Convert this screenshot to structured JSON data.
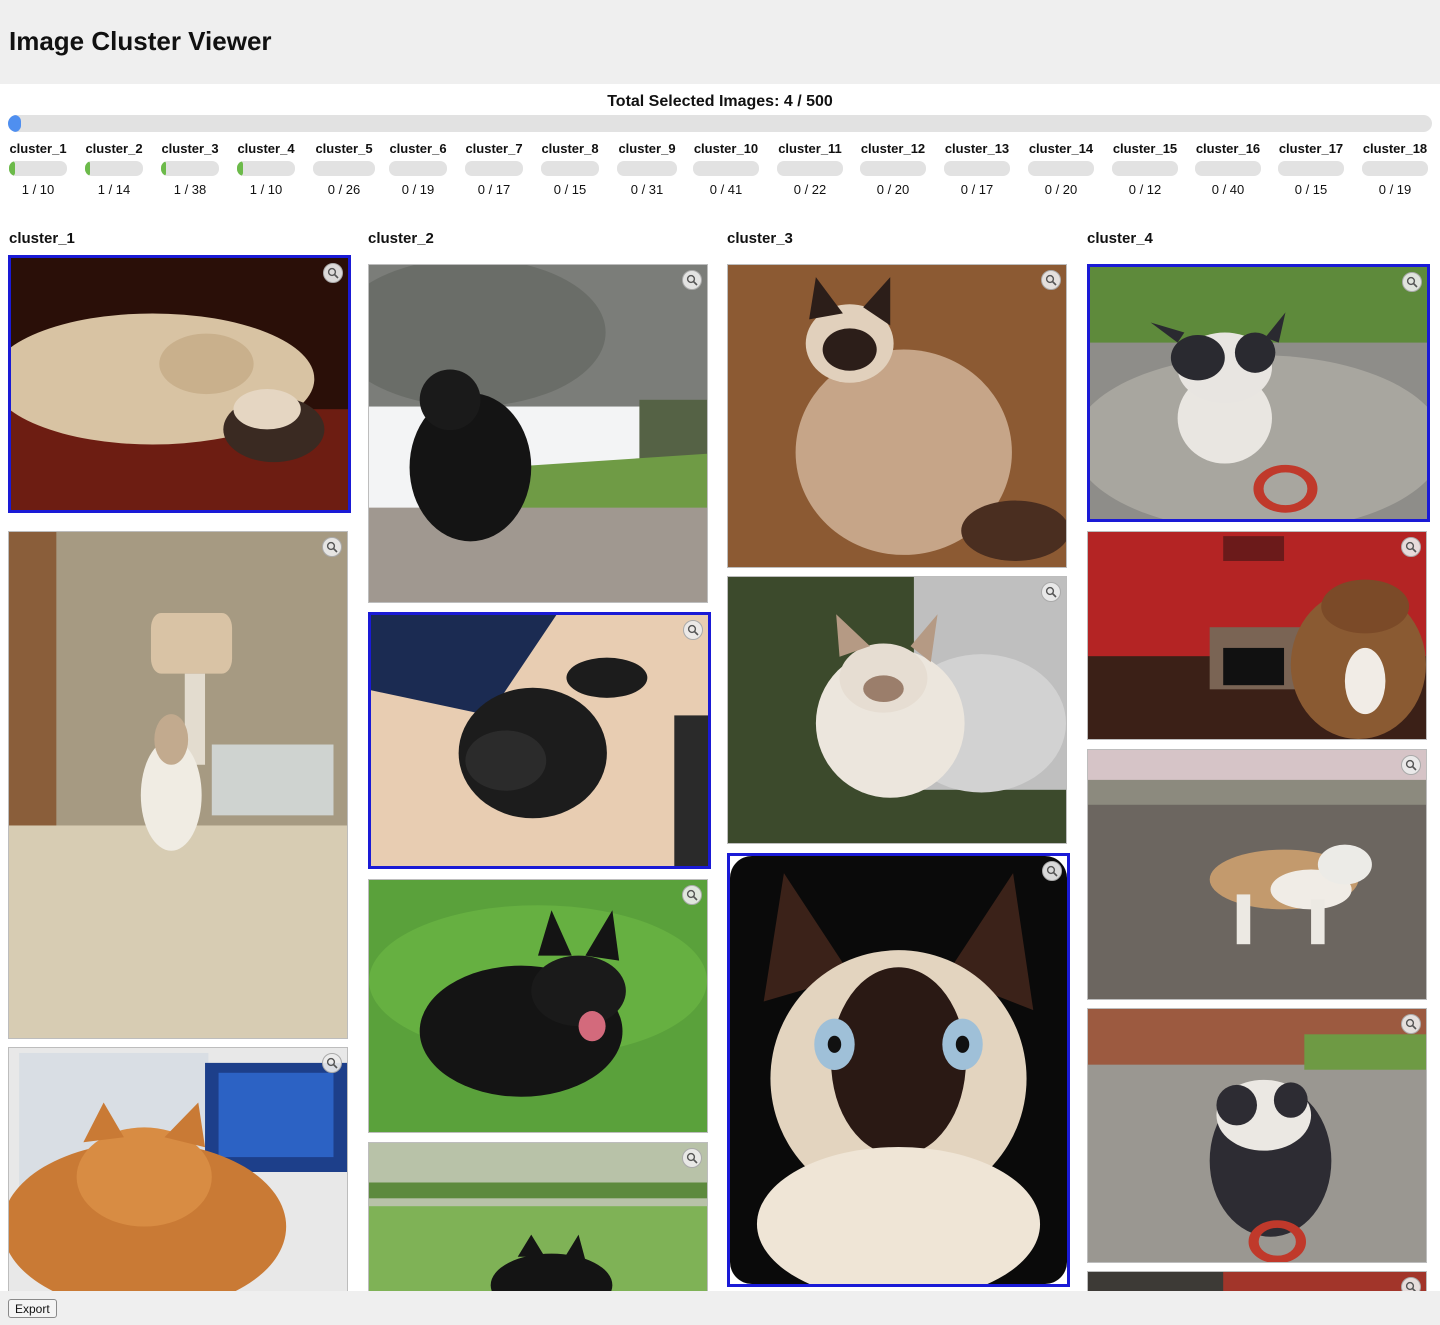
{
  "app": {
    "title": "Image Cluster Viewer"
  },
  "summary": {
    "label": "Total Selected Images: 4 / 500",
    "selected": 4,
    "total": 500
  },
  "clusters": [
    {
      "name": "cluster_1",
      "count": "1 / 10",
      "selected": 1,
      "total": 10
    },
    {
      "name": "cluster_2",
      "count": "1 / 14",
      "selected": 1,
      "total": 14
    },
    {
      "name": "cluster_3",
      "count": "1 / 38",
      "selected": 1,
      "total": 38
    },
    {
      "name": "cluster_4",
      "count": "1 / 10",
      "selected": 1,
      "total": 10
    },
    {
      "name": "cluster_5",
      "count": "0 / 26",
      "selected": 0,
      "total": 26
    },
    {
      "name": "cluster_6",
      "count": "0 / 19",
      "selected": 0,
      "total": 19
    },
    {
      "name": "cluster_7",
      "count": "0 / 17",
      "selected": 0,
      "total": 17
    },
    {
      "name": "cluster_8",
      "count": "0 / 15",
      "selected": 0,
      "total": 15
    },
    {
      "name": "cluster_9",
      "count": "0 / 31",
      "selected": 0,
      "total": 31
    },
    {
      "name": "cluster_10",
      "count": "0 / 41",
      "selected": 0,
      "total": 41
    },
    {
      "name": "cluster_11",
      "count": "0 / 22",
      "selected": 0,
      "total": 22
    },
    {
      "name": "cluster_12",
      "count": "0 / 20",
      "selected": 0,
      "total": 20
    },
    {
      "name": "cluster_13",
      "count": "0 / 17",
      "selected": 0,
      "total": 17
    },
    {
      "name": "cluster_14",
      "count": "0 / 20",
      "selected": 0,
      "total": 20
    },
    {
      "name": "cluster_15",
      "count": "0 / 12",
      "selected": 0,
      "total": 12
    },
    {
      "name": "cluster_16",
      "count": "0 / 40",
      "selected": 0,
      "total": 40
    },
    {
      "name": "cluster_17",
      "count": "0 / 15",
      "selected": 0,
      "total": 15
    },
    {
      "name": "cluster_18",
      "count": "0 / 19",
      "selected": 0,
      "total": 19
    }
  ],
  "columns": [
    {
      "title": "cluster_1",
      "images": [
        {
          "subject": "sleeping-cat",
          "selected": true
        },
        {
          "subject": "cat-on-bed",
          "selected": false
        },
        {
          "subject": "orange-cat-at-desk",
          "selected": false
        }
      ]
    },
    {
      "title": "cluster_2",
      "images": [
        {
          "subject": "black-terrier-garden",
          "selected": false
        },
        {
          "subject": "black-terrier-on-rug",
          "selected": true
        },
        {
          "subject": "black-terrier-grass",
          "selected": false
        },
        {
          "subject": "black-terrier-lawn",
          "selected": false
        }
      ]
    },
    {
      "title": "cluster_3",
      "images": [
        {
          "subject": "siamese-cat-mat",
          "selected": false
        },
        {
          "subject": "siamese-kitten-cushion",
          "selected": false
        },
        {
          "subject": "siamese-cat-closeup",
          "selected": true
        }
      ]
    },
    {
      "title": "cluster_4",
      "images": [
        {
          "subject": "pitbull-gravel",
          "selected": true
        },
        {
          "subject": "boxer-living-room",
          "selected": false
        },
        {
          "subject": "tan-white-dog-yard",
          "selected": false
        },
        {
          "subject": "pitbull-yard-toy",
          "selected": false
        },
        {
          "subject": "dog-partial",
          "selected": false
        }
      ]
    }
  ],
  "controls": {
    "export_label": "Export",
    "zoom_icon": "zoom-icon"
  },
  "colors": {
    "selection_border": "#1a1ad6",
    "total_progress": "#4f8ff0",
    "cluster_progress": "#6cba4a"
  }
}
